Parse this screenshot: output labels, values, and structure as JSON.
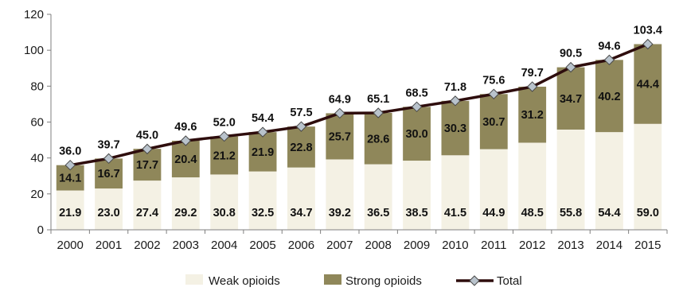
{
  "chart_data": {
    "type": "bar",
    "stacked": true,
    "categories": [
      "2000",
      "2001",
      "2002",
      "2003",
      "2004",
      "2005",
      "2006",
      "2007",
      "2008",
      "2009",
      "2010",
      "2011",
      "2012",
      "2013",
      "2014",
      "2015"
    ],
    "series": [
      {
        "name": "Weak opioids",
        "color": "#f4f1e4",
        "values": [
          21.9,
          23.0,
          27.4,
          29.2,
          30.8,
          32.5,
          34.7,
          39.2,
          36.5,
          38.5,
          41.5,
          44.9,
          48.5,
          55.8,
          54.4,
          59.0
        ],
        "labels": [
          "21.9",
          "23.0",
          "27.4",
          "29.2",
          "30.8",
          "32.5",
          "34.7",
          "39.2",
          "36.5",
          "38.5",
          "41.5",
          "44.9",
          "48.5",
          "55.8",
          "54.4",
          "59.0"
        ]
      },
      {
        "name": "Strong opioids",
        "color": "#8f875a",
        "values": [
          14.1,
          16.7,
          17.7,
          20.4,
          21.2,
          21.9,
          22.8,
          25.7,
          28.6,
          30.0,
          30.3,
          30.7,
          31.2,
          34.7,
          40.2,
          44.4
        ],
        "labels": [
          "14.1",
          "16.7",
          "17.7",
          "20.4",
          "21.2",
          "21.9",
          "22.8",
          "25.7",
          "28.6",
          "30.0",
          "30.3",
          "30.7",
          "31.2",
          "34.7",
          "40.2",
          "44.4"
        ]
      },
      {
        "name": "Total",
        "type": "line",
        "color": "#2e0d0d",
        "marker_color": "#b9c3cc",
        "values": [
          36.0,
          39.7,
          45.0,
          49.6,
          52.0,
          54.4,
          57.5,
          64.9,
          65.1,
          68.5,
          71.8,
          75.6,
          79.7,
          90.5,
          94.6,
          103.4
        ],
        "labels": [
          "36.0",
          "39.7",
          "45.0",
          "49.6",
          "52.0",
          "54.4",
          "57.5",
          "64.9",
          "65.1",
          "68.5",
          "71.8",
          "75.6",
          "79.7",
          "90.5",
          "94.6",
          "103.4"
        ]
      }
    ],
    "ylim": [
      0,
      120
    ],
    "yticks": [
      0,
      20,
      40,
      60,
      80,
      100,
      120
    ],
    "ytick_labels": [
      "0",
      "20",
      "40",
      "60",
      "80",
      "100",
      "120"
    ],
    "title": "",
    "xlabel": "",
    "ylabel": "",
    "grid": false,
    "legend": "bottom-center"
  }
}
